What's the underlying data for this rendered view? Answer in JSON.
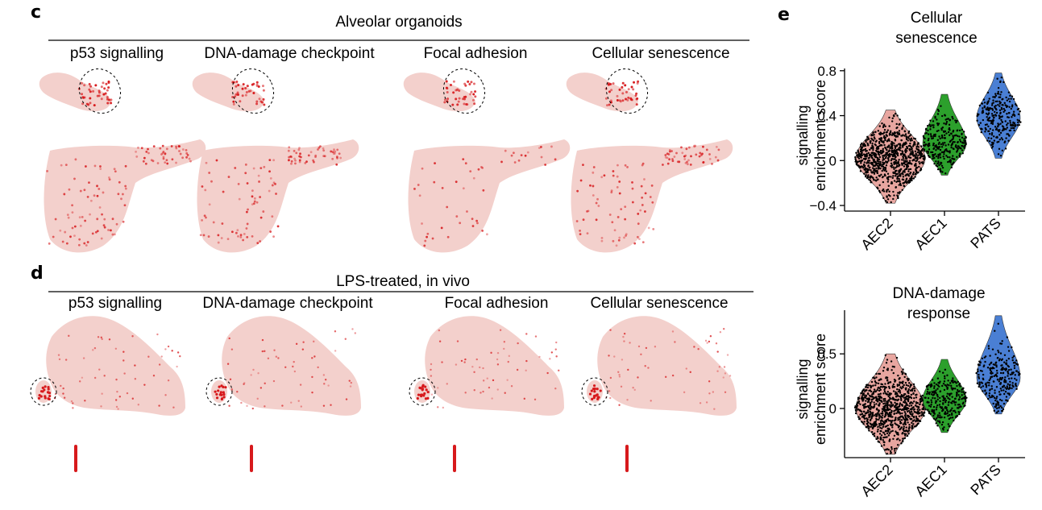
{
  "panels": {
    "c": {
      "letter": "c",
      "header": "Alveolar organoids",
      "subtitles": [
        "p53 signalling",
        "DNA-damage checkpoint",
        "Focal adhesion",
        "Cellular senescence"
      ]
    },
    "d": {
      "letter": "d",
      "header": "LPS-treated, in vivo",
      "subtitles": [
        "p53 signalling",
        "DNA-damage checkpoint",
        "Focal adhesion",
        "Cellular senescence"
      ]
    },
    "e": {
      "letter": "e"
    }
  },
  "colors": {
    "umap_base": "#f3d0cc",
    "umap_high": "#d7191c",
    "AEC2": "#e8a6a0",
    "AEC1": "#2ca02c",
    "PATS": "#4a7fd4",
    "jitter": "#000000"
  },
  "chart_data": [
    {
      "type": "violin",
      "title_lines": [
        "Cellular",
        "senescence"
      ],
      "ylabel_lines": [
        "signalling",
        "enrichment score"
      ],
      "categories": [
        "AEC2",
        "AEC1",
        "PATS"
      ],
      "yticks": [
        "−0.4",
        "0",
        "0.4",
        "0.8"
      ],
      "ytick_values": [
        -0.4,
        0,
        0.4,
        0.8
      ],
      "ylim": [
        -0.45,
        0.82
      ],
      "series": [
        {
          "category": "AEC2",
          "median": 0.02,
          "min": -0.38,
          "max": 0.45
        },
        {
          "category": "AEC1",
          "median": 0.15,
          "min": -0.13,
          "max": 0.59
        },
        {
          "category": "PATS",
          "median": 0.38,
          "min": 0.02,
          "max": 0.78
        }
      ]
    },
    {
      "type": "violin",
      "title_lines": [
        "DNA-damage",
        "response"
      ],
      "ylabel_lines": [
        "signalling",
        "enrichment score"
      ],
      "categories": [
        "AEC2",
        "AEC1",
        "PATS"
      ],
      "yticks": [
        "0",
        "0.5"
      ],
      "ytick_values": [
        0,
        0.5
      ],
      "ylim": [
        -0.45,
        0.9
      ],
      "series": [
        {
          "category": "AEC2",
          "median": 0.0,
          "min": -0.42,
          "max": 0.5
        },
        {
          "category": "AEC1",
          "median": 0.08,
          "min": -0.22,
          "max": 0.45
        },
        {
          "category": "PATS",
          "median": 0.28,
          "min": -0.05,
          "max": 0.85
        }
      ]
    }
  ]
}
